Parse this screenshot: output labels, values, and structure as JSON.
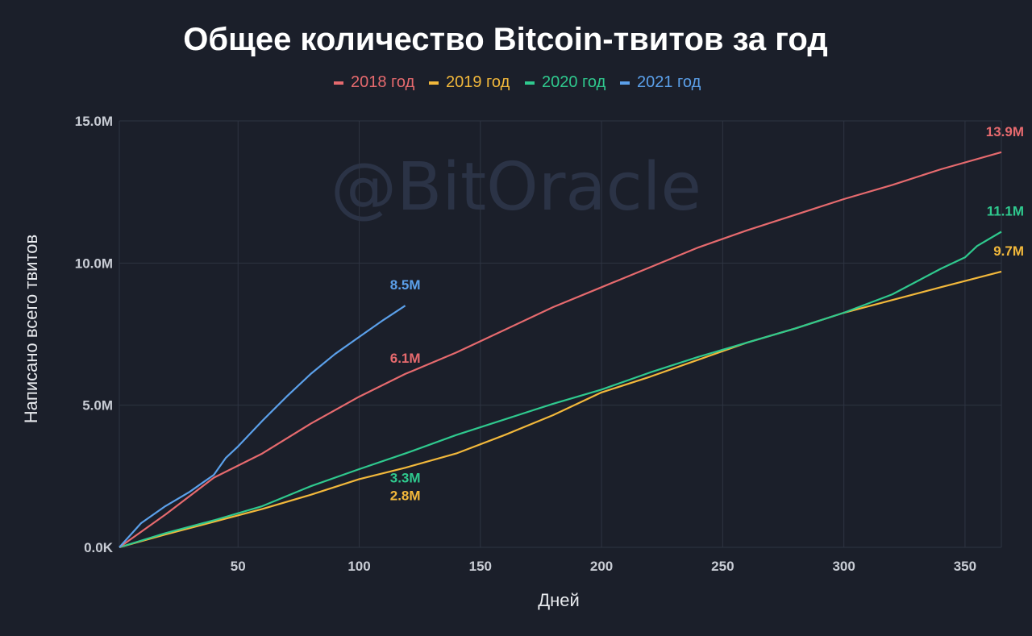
{
  "watermark": "@BitOracle",
  "colors": {
    "background": "#1b1f2a",
    "grid": "#2e3442",
    "y2018": "#e66a6e",
    "y2019": "#f2b83b",
    "y2020": "#2fc98e",
    "y2021": "#5ba0ea"
  },
  "chart_data": {
    "type": "line",
    "title": "Общее количество Bitcoin-твитов за год",
    "xlabel": "Дней",
    "ylabel": "Написано всего твитов",
    "xlim": [
      1,
      365
    ],
    "ylim": [
      0,
      15000000
    ],
    "x_ticks": [
      50,
      100,
      150,
      200,
      250,
      300,
      350
    ],
    "y_ticks": [
      {
        "value": 0,
        "label": "0.0K"
      },
      {
        "value": 5000000,
        "label": "5.0M"
      },
      {
        "value": 10000000,
        "label": "10.0M"
      },
      {
        "value": 15000000,
        "label": "15.0M"
      }
    ],
    "grid": true,
    "legend_position": "top-center",
    "series": [
      {
        "name": "2018 год",
        "color": "#e66a6e",
        "x": [
          1,
          20,
          40,
          60,
          80,
          100,
          119,
          140,
          160,
          180,
          200,
          220,
          240,
          260,
          280,
          300,
          320,
          340,
          365
        ],
        "y": [
          0,
          1150000,
          2450000,
          3300000,
          4350000,
          5300000,
          6100000,
          6850000,
          7650000,
          8450000,
          9150000,
          9850000,
          10550000,
          11150000,
          11700000,
          12250000,
          12750000,
          13300000,
          13900000
        ]
      },
      {
        "name": "2019 год",
        "color": "#f2b83b",
        "x": [
          1,
          20,
          40,
          60,
          80,
          100,
          119,
          140,
          160,
          180,
          200,
          220,
          240,
          260,
          280,
          300,
          320,
          340,
          365
        ],
        "y": [
          0,
          450000,
          900000,
          1350000,
          1850000,
          2400000,
          2800000,
          3300000,
          3950000,
          4650000,
          5450000,
          6000000,
          6600000,
          7200000,
          7700000,
          8250000,
          8700000,
          9150000,
          9700000
        ]
      },
      {
        "name": "2020 год",
        "color": "#2fc98e",
        "x": [
          1,
          20,
          40,
          60,
          80,
          100,
          119,
          140,
          160,
          180,
          200,
          220,
          240,
          260,
          280,
          300,
          320,
          340,
          350,
          355,
          365
        ],
        "y": [
          0,
          500000,
          950000,
          1450000,
          2150000,
          2750000,
          3300000,
          3950000,
          4500000,
          5050000,
          5550000,
          6150000,
          6700000,
          7200000,
          7700000,
          8250000,
          8900000,
          9800000,
          10200000,
          10600000,
          11100000
        ]
      },
      {
        "name": "2021 год",
        "color": "#5ba0ea",
        "x": [
          1,
          10,
          20,
          30,
          40,
          45,
          50,
          60,
          70,
          80,
          90,
          100,
          110,
          119
        ],
        "y": [
          0,
          850000,
          1450000,
          1950000,
          2550000,
          3150000,
          3550000,
          4450000,
          5300000,
          6100000,
          6800000,
          7400000,
          8000000,
          8500000
        ]
      }
    ],
    "annotations": [
      {
        "text": "8.5M",
        "x": 119,
        "y": 8500000,
        "series": 3
      },
      {
        "text": "6.1M",
        "x": 119,
        "y": 6100000,
        "series": 0
      },
      {
        "text": "3.3M",
        "x": 119,
        "y": 3300000,
        "series": 2
      },
      {
        "text": "2.8M",
        "x": 119,
        "y": 2800000,
        "series": 1
      },
      {
        "text": "13.9M",
        "x": 365,
        "y": 13900000,
        "series": 0
      },
      {
        "text": "11.1M",
        "x": 365,
        "y": 11100000,
        "series": 2
      },
      {
        "text": "9.7M",
        "x": 365,
        "y": 9700000,
        "series": 1
      }
    ]
  }
}
